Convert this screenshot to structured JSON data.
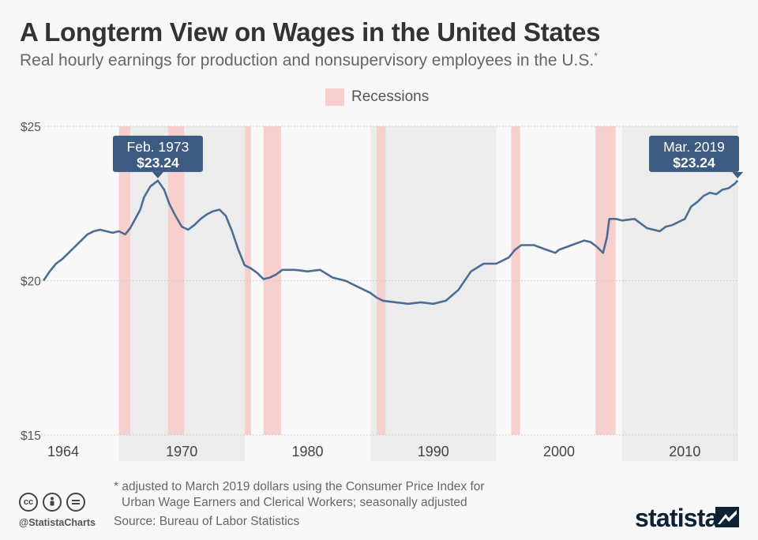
{
  "header": {
    "title": "A Longterm View on Wages in the United States",
    "subtitle": "Real hourly earnings for production and nonsupervisory employees in the U.S.",
    "subtitle_mark": "*"
  },
  "legend": {
    "label": "Recessions",
    "color": "#f7d0cd"
  },
  "chart_data": {
    "type": "line",
    "title": "A Longterm View on Wages in the United States",
    "subtitle": "Real hourly earnings for production and nonsupervisory employees in the U.S.*",
    "ylabel": "",
    "xlabel": "",
    "x_ticks": [
      "1964",
      "1970",
      "1980",
      "1990",
      "2000",
      "2010"
    ],
    "x_tick_values": [
      1964,
      1970,
      1980,
      1990,
      2000,
      2010
    ],
    "y_ticks": [
      "$15",
      "$20",
      "$25"
    ],
    "y_tick_values": [
      15,
      20,
      25
    ],
    "ylim": [
      15,
      25
    ],
    "grid": "horizontal dotted",
    "line_color": "#4c6d93",
    "decade_band_color": "#ececec",
    "recession_color": "#f7d0cd",
    "decade_bands": [
      [
        1970,
        1980
      ],
      [
        1990,
        2000
      ],
      [
        2010,
        2020
      ]
    ],
    "recessions": [
      [
        1970.0,
        1970.9
      ],
      [
        1973.9,
        1975.2
      ],
      [
        1980.0,
        1980.5
      ],
      [
        1981.5,
        1982.9
      ],
      [
        1990.5,
        1991.2
      ],
      [
        2001.2,
        2001.9
      ],
      [
        2007.9,
        2009.5
      ]
    ],
    "series": [
      {
        "values": [
          [
            1964.0,
            20.0
          ],
          [
            1964.5,
            20.3
          ],
          [
            1965.0,
            20.55
          ],
          [
            1965.5,
            20.7
          ],
          [
            1966.0,
            20.9
          ],
          [
            1966.5,
            21.1
          ],
          [
            1967.0,
            21.3
          ],
          [
            1967.5,
            21.5
          ],
          [
            1968.0,
            21.6
          ],
          [
            1968.5,
            21.65
          ],
          [
            1969.0,
            21.6
          ],
          [
            1969.5,
            21.55
          ],
          [
            1970.0,
            21.6
          ],
          [
            1970.5,
            21.5
          ],
          [
            1970.9,
            21.7
          ],
          [
            1971.3,
            22.0
          ],
          [
            1971.7,
            22.3
          ],
          [
            1972.0,
            22.7
          ],
          [
            1972.5,
            23.05
          ],
          [
            1973.1,
            23.24
          ],
          [
            1973.6,
            22.95
          ],
          [
            1974.0,
            22.5
          ],
          [
            1974.5,
            22.1
          ],
          [
            1975.0,
            21.75
          ],
          [
            1975.5,
            21.65
          ],
          [
            1976.0,
            21.8
          ],
          [
            1976.5,
            22.0
          ],
          [
            1977.0,
            22.15
          ],
          [
            1977.5,
            22.25
          ],
          [
            1978.0,
            22.3
          ],
          [
            1978.5,
            22.1
          ],
          [
            1979.0,
            21.6
          ],
          [
            1979.5,
            21.0
          ],
          [
            1980.0,
            20.5
          ],
          [
            1980.5,
            20.4
          ],
          [
            1981.0,
            20.25
          ],
          [
            1981.5,
            20.05
          ],
          [
            1982.0,
            20.1
          ],
          [
            1982.5,
            20.2
          ],
          [
            1983.0,
            20.35
          ],
          [
            1984.0,
            20.35
          ],
          [
            1985.0,
            20.3
          ],
          [
            1986.0,
            20.35
          ],
          [
            1987.0,
            20.1
          ],
          [
            1988.0,
            20.0
          ],
          [
            1989.0,
            19.8
          ],
          [
            1990.0,
            19.6
          ],
          [
            1990.5,
            19.45
          ],
          [
            1991.0,
            19.35
          ],
          [
            1992.0,
            19.3
          ],
          [
            1993.0,
            19.25
          ],
          [
            1994.0,
            19.3
          ],
          [
            1995.0,
            19.25
          ],
          [
            1996.0,
            19.35
          ],
          [
            1997.0,
            19.7
          ],
          [
            1998.0,
            20.3
          ],
          [
            1999.0,
            20.55
          ],
          [
            2000.0,
            20.55
          ],
          [
            2001.0,
            20.75
          ],
          [
            2001.5,
            21.0
          ],
          [
            2002.0,
            21.15
          ],
          [
            2003.0,
            21.15
          ],
          [
            2004.0,
            21.0
          ],
          [
            2004.7,
            20.9
          ],
          [
            2005.0,
            21.0
          ],
          [
            2006.0,
            21.15
          ],
          [
            2007.0,
            21.3
          ],
          [
            2007.5,
            21.25
          ],
          [
            2008.0,
            21.1
          ],
          [
            2008.5,
            20.9
          ],
          [
            2008.8,
            21.4
          ],
          [
            2009.0,
            22.0
          ],
          [
            2009.5,
            22.0
          ],
          [
            2010.0,
            21.95
          ],
          [
            2011.0,
            22.0
          ],
          [
            2011.5,
            21.85
          ],
          [
            2012.0,
            21.7
          ],
          [
            2013.0,
            21.6
          ],
          [
            2013.5,
            21.75
          ],
          [
            2014.0,
            21.8
          ],
          [
            2015.0,
            22.0
          ],
          [
            2015.5,
            22.4
          ],
          [
            2016.0,
            22.55
          ],
          [
            2016.5,
            22.75
          ],
          [
            2017.0,
            22.85
          ],
          [
            2017.5,
            22.8
          ],
          [
            2018.0,
            22.95
          ],
          [
            2018.5,
            23.0
          ],
          [
            2019.0,
            23.15
          ],
          [
            2019.2,
            23.24
          ]
        ]
      }
    ],
    "annotations": [
      {
        "label": "Feb. 1973",
        "value": "$23.24",
        "x": 1973.1,
        "y": 23.24
      },
      {
        "label": "Mar. 2019",
        "value": "$23.24",
        "x": 2019.2,
        "y": 23.24
      }
    ]
  },
  "footer": {
    "note_line1": "* adjusted to March 2019 dollars using the Consumer Price Index for",
    "note_line2": "Urban Wage Earners and Clerical Workers; seasonally adjusted",
    "source": "Source: Bureau of Labor Statistics",
    "handle": "@StatistaCharts",
    "brand": "statista",
    "cc_icons": [
      "cc",
      "by",
      "nd"
    ]
  }
}
